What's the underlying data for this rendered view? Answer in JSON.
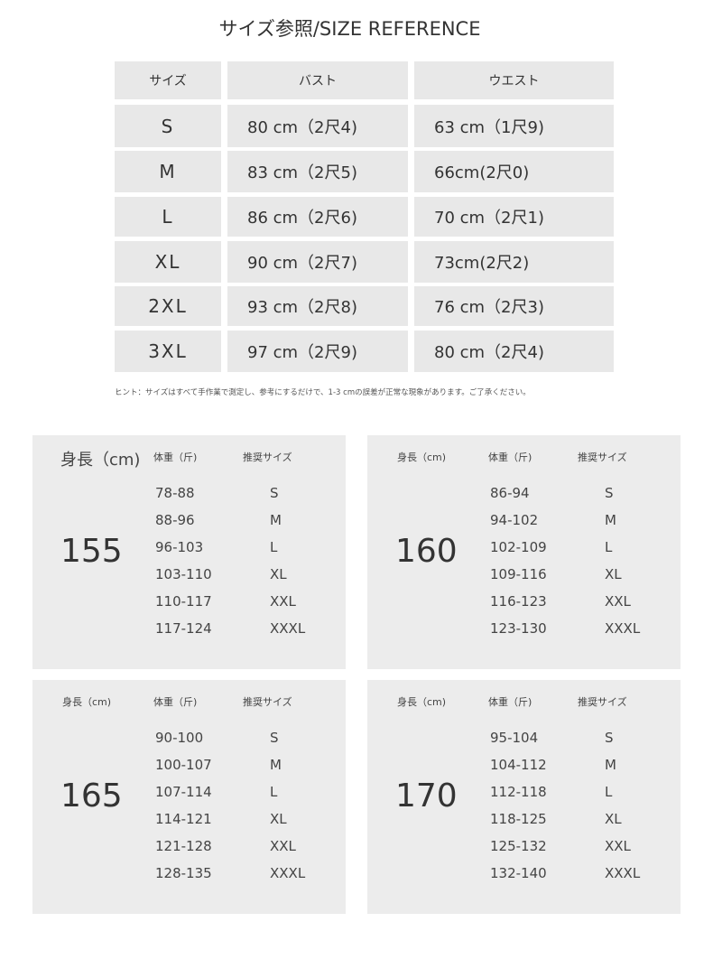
{
  "title": "サイズ参照/SIZE REFERENCE",
  "table": {
    "headers": [
      "サイズ",
      "バスト",
      "ウエスト"
    ],
    "rows": [
      {
        "size": "S",
        "bust": "80 cm（2尺4)",
        "waist": "63 cm（1尺9)"
      },
      {
        "size": "M",
        "bust": "83 cm（2尺5)",
        "waist": "66cm(2尺0)"
      },
      {
        "size": "L",
        "bust": "86 cm（2尺6)",
        "waist": "70 cm（2尺1)"
      },
      {
        "size": "XL",
        "bust": "90 cm（2尺7)",
        "waist": "73cm(2尺2)"
      },
      {
        "size": "2XL",
        "bust": "93 cm（2尺8)",
        "waist": "76 cm（2尺3)"
      },
      {
        "size": "3XL",
        "bust": "97 cm（2尺9)",
        "waist": "80 cm（2尺4)"
      }
    ]
  },
  "hint": "ヒント：サイズはすべて手作業で測定し、参考にするだけで、1-3 cmの誤差が正常な現象があります。ご了承ください。",
  "panels": [
    {
      "height_label": "身長（cm)",
      "weight_label": "体重（斤)",
      "size_label": "推奨サイズ",
      "height": "155",
      "rows": [
        {
          "w": "78-88",
          "s": "S"
        },
        {
          "w": "88-96",
          "s": "M"
        },
        {
          "w": "96-103",
          "s": "L"
        },
        {
          "w": "103-110",
          "s": "XL"
        },
        {
          "w": "110-117",
          "s": "XXL"
        },
        {
          "w": "117-124",
          "s": "XXXL"
        }
      ]
    },
    {
      "height_label": "身長（cm)",
      "weight_label": "体重（斤)",
      "size_label": "推奨サイズ",
      "height": "160",
      "rows": [
        {
          "w": "86-94",
          "s": "S"
        },
        {
          "w": "94-102",
          "s": "M"
        },
        {
          "w": "102-109",
          "s": "L"
        },
        {
          "w": "109-116",
          "s": "XL"
        },
        {
          "w": "116-123",
          "s": "XXL"
        },
        {
          "w": "123-130",
          "s": "XXXL"
        }
      ]
    },
    {
      "height_label": "身長（cm)",
      "weight_label": "体重（斤)",
      "size_label": "推奨サイズ",
      "height": "165",
      "rows": [
        {
          "w": "90-100",
          "s": "S"
        },
        {
          "w": "100-107",
          "s": "M"
        },
        {
          "w": "107-114",
          "s": "L"
        },
        {
          "w": "114-121",
          "s": "XL"
        },
        {
          "w": "121-128",
          "s": "XXL"
        },
        {
          "w": "128-135",
          "s": "XXXL"
        }
      ]
    },
    {
      "height_label": "身長（cm)",
      "weight_label": "体重（斤)",
      "size_label": "推奨サイズ",
      "height": "170",
      "rows": [
        {
          "w": "95-104",
          "s": "S"
        },
        {
          "w": "104-112",
          "s": "M"
        },
        {
          "w": "112-118",
          "s": "L"
        },
        {
          "w": "118-125",
          "s": "XL"
        },
        {
          "w": "125-132",
          "s": "XXL"
        },
        {
          "w": "132-140",
          "s": "XXXL"
        }
      ]
    }
  ]
}
